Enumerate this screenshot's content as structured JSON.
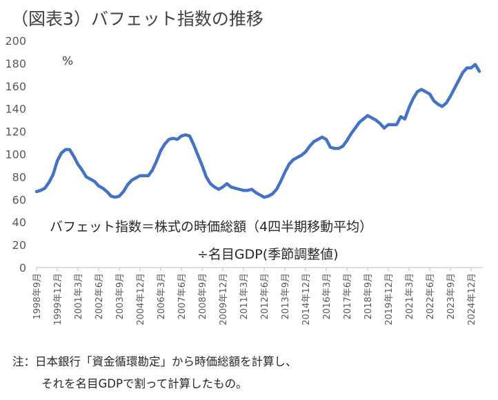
{
  "title": "（図表3）バフェット指数の推移",
  "chart_data": {
    "type": "line",
    "ylim": [
      0,
      200
    ],
    "yticks": [
      0,
      20,
      40,
      60,
      80,
      100,
      120,
      140,
      160,
      180,
      200
    ],
    "unit_label": "%",
    "annotation_line1": "バフェット指数＝株式の時価総額（4四半期移動平均）",
    "annotation_line2": "÷名目GDP(季節調整値)",
    "x_tick_labels": [
      "1998年9月",
      "1999年12月",
      "2001年3月",
      "2002年6月",
      "2003年9月",
      "2004年12月",
      "2006年3月",
      "2007年6月",
      "2008年9月",
      "2009年12月",
      "2011年3月",
      "2012年6月",
      "2013年9月",
      "2014年12月",
      "2016年3月",
      "2017年6月",
      "2018年9月",
      "2019年12月",
      "2021年3月",
      "2022年6月",
      "2023年9月",
      "2024年12月"
    ],
    "series": [
      {
        "color": "#4472C4",
        "x_start": "1998年9月",
        "frequency": "quarterly",
        "values": [
          67,
          68,
          70,
          75,
          82,
          94,
          101,
          104,
          104,
          98,
          91,
          86,
          80,
          78,
          76,
          72,
          70,
          67,
          63,
          62,
          63,
          67,
          73,
          77,
          79,
          81,
          81,
          81,
          86,
          94,
          103,
          109,
          113,
          114,
          113,
          116,
          117,
          116,
          108,
          99,
          90,
          80,
          74,
          71,
          69,
          71,
          74,
          71,
          70,
          69,
          68,
          68,
          69,
          66,
          64,
          62,
          63,
          65,
          69,
          76,
          84,
          91,
          95,
          97,
          99,
          102,
          107,
          111,
          113,
          115,
          113,
          106,
          105,
          105,
          107,
          112,
          118,
          123,
          128,
          131,
          134,
          132,
          130,
          127,
          123,
          126,
          126,
          126,
          133,
          131,
          141,
          149,
          155,
          157,
          155,
          153,
          147,
          144,
          142,
          145,
          151,
          158,
          165,
          172,
          176,
          176,
          179,
          173
        ]
      }
    ]
  },
  "notes": {
    "line1": "注：日本銀行「資金循環勘定」から時価総額を計算し、",
    "line2": "それを名目GDPで割って計算したもの。"
  }
}
